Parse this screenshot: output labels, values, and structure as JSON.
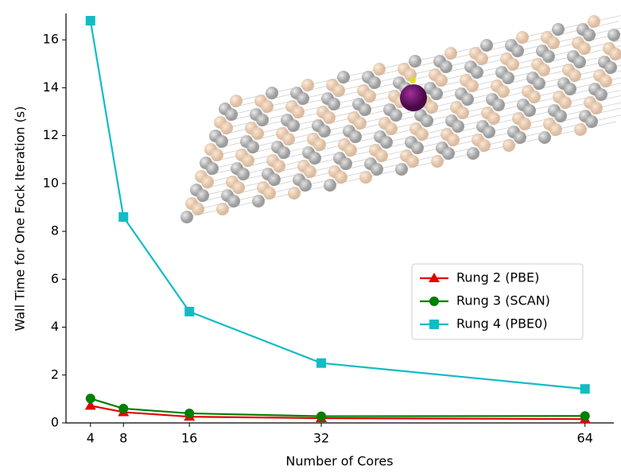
{
  "chart_data": {
    "type": "line",
    "x_label": "Number of Cores",
    "y_label": "Wall Time for One Fock Iteration (s)",
    "x": [
      4,
      8,
      16,
      32,
      64
    ],
    "series": [
      {
        "name": "Rung 2 (PBE)",
        "color": "#e50000",
        "marker": "triangle",
        "values": [
          0.72,
          0.45,
          0.26,
          0.2,
          0.16
        ]
      },
      {
        "name": "Rung 3 (SCAN)",
        "color": "#007f00",
        "marker": "circle",
        "values": [
          1.02,
          0.6,
          0.4,
          0.28,
          0.29
        ]
      },
      {
        "name": "Rung 4 (PBE0)",
        "color": "#12bcc4",
        "marker": "square",
        "values": [
          16.8,
          8.6,
          4.65,
          2.5,
          1.42
        ]
      }
    ],
    "xlim": [
      1.03,
      67.5
    ],
    "ylim": [
      0,
      17.1
    ],
    "xticks": [
      4,
      8,
      16,
      32,
      64
    ],
    "yticks": [
      0,
      2,
      4,
      6,
      8,
      10,
      12,
      14,
      16
    ],
    "legend": "center right"
  }
}
